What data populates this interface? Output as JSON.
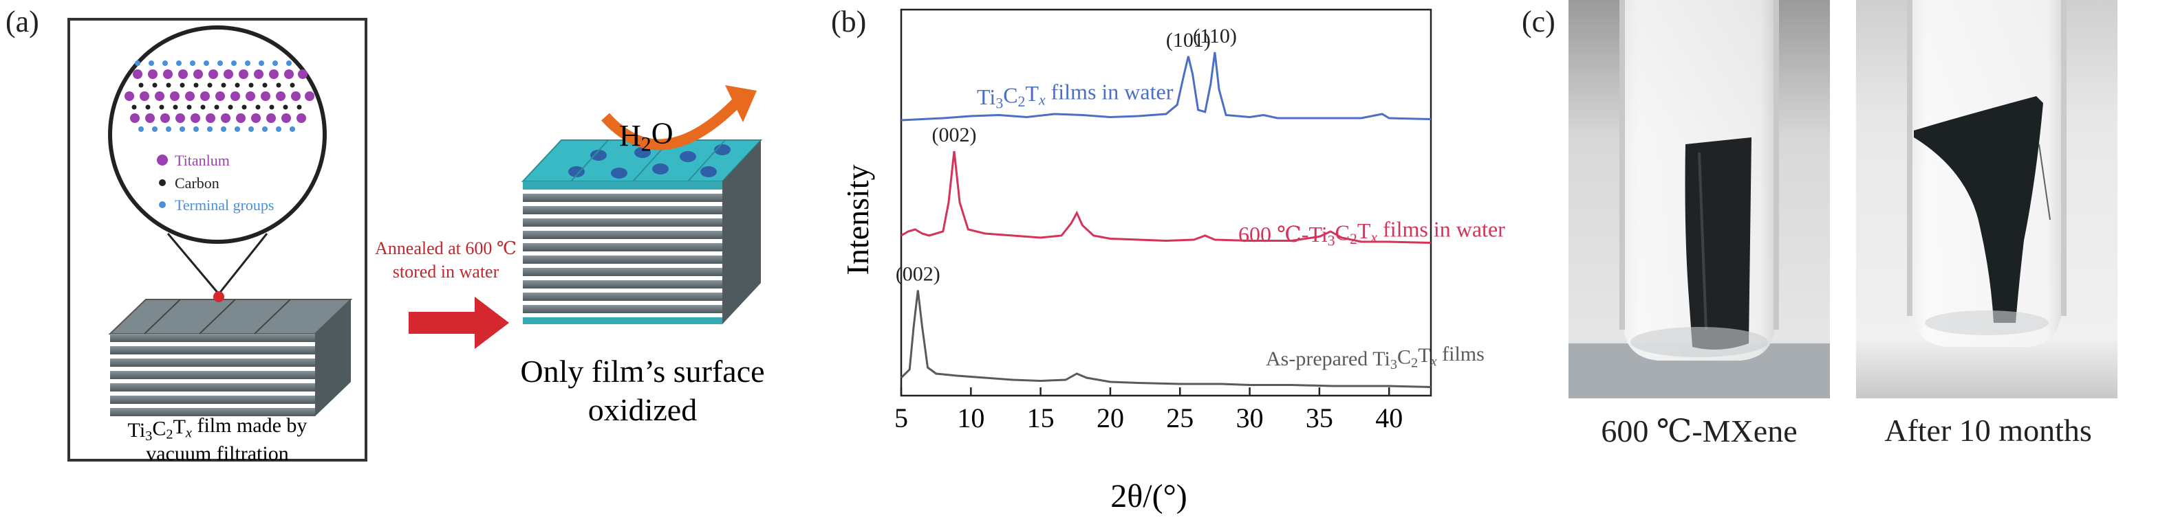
{
  "panel_a": {
    "letter": "(a)",
    "legend_titanium": "Titanlum",
    "legend_carbon": "Carbon",
    "legend_terminal": "Terminal groups",
    "film_caption_line1": "Ti3C2Tx film made by",
    "film_caption_line2": "vacuum filtration",
    "arrow_label_line1": "Annealed at 600 ℃",
    "arrow_label_line2": "stored in water",
    "water_label": "H2O",
    "oxidized_line1": "Only film’s surface",
    "oxidized_line2": "oxidized",
    "colors": {
      "titanium": "#9b3fb0",
      "carbon": "#222222",
      "terminal": "#4a90d6",
      "arrow": "#d4272e",
      "curved_arrow": "#e86a1f",
      "surface": "#39b9c4"
    }
  },
  "panel_b": {
    "letter": "(b)"
  },
  "panel_c": {
    "letter": "(c)",
    "photo1_caption": "600 ℃-MXene",
    "photo2_caption": "After 10 months"
  },
  "chart_data": {
    "type": "line",
    "xlabel": "2θ/(°)",
    "ylabel": "Intensity",
    "xlim": [
      5,
      43
    ],
    "xticks": [
      5,
      10,
      15,
      20,
      25,
      30,
      35,
      40
    ],
    "yticks": "none",
    "grid": false,
    "series": [
      {
        "name": "Ti3C2Tx films in water",
        "color": "#4a6fc4",
        "offset": 2.6,
        "points": [
          [
            5,
            0.0
          ],
          [
            8,
            0.02
          ],
          [
            10,
            0.04
          ],
          [
            12,
            0.05
          ],
          [
            14,
            0.03
          ],
          [
            16,
            0.06
          ],
          [
            18,
            0.05
          ],
          [
            20,
            0.03
          ],
          [
            22,
            0.04
          ],
          [
            24,
            0.06
          ],
          [
            24.8,
            0.15
          ],
          [
            25.3,
            0.45
          ],
          [
            25.6,
            0.62
          ],
          [
            25.9,
            0.45
          ],
          [
            26.3,
            0.1
          ],
          [
            26.8,
            0.08
          ],
          [
            27.2,
            0.35
          ],
          [
            27.5,
            0.66
          ],
          [
            27.8,
            0.3
          ],
          [
            28.3,
            0.05
          ],
          [
            30,
            0.03
          ],
          [
            31,
            0.05
          ],
          [
            32,
            0.02
          ],
          [
            35,
            0.02
          ],
          [
            38,
            0.02
          ],
          [
            39.5,
            0.06
          ],
          [
            40,
            0.02
          ],
          [
            43,
            0.01
          ]
        ],
        "annotations": [
          {
            "x": 25.6,
            "text": "(101)"
          },
          {
            "x": 27.5,
            "text": "(110)"
          }
        ]
      },
      {
        "name": "600 ℃-Ti3C2Tx films in water",
        "color": "#d6335a",
        "offset": 1.4,
        "points": [
          [
            5,
            0.08
          ],
          [
            5.5,
            0.12
          ],
          [
            6,
            0.14
          ],
          [
            6.5,
            0.1
          ],
          [
            7,
            0.08
          ],
          [
            8,
            0.12
          ],
          [
            8.4,
            0.4
          ],
          [
            8.8,
            0.9
          ],
          [
            9.2,
            0.4
          ],
          [
            9.8,
            0.14
          ],
          [
            11,
            0.1
          ],
          [
            13,
            0.08
          ],
          [
            15,
            0.06
          ],
          [
            16.5,
            0.08
          ],
          [
            17.2,
            0.2
          ],
          [
            17.6,
            0.3
          ],
          [
            18,
            0.18
          ],
          [
            18.8,
            0.08
          ],
          [
            20,
            0.05
          ],
          [
            22,
            0.04
          ],
          [
            24,
            0.03
          ],
          [
            26,
            0.04
          ],
          [
            26.8,
            0.08
          ],
          [
            27.5,
            0.04
          ],
          [
            30,
            0.03
          ],
          [
            33,
            0.03
          ],
          [
            35,
            0.07
          ],
          [
            35.8,
            0.12
          ],
          [
            36.6,
            0.06
          ],
          [
            38,
            0.02
          ],
          [
            40,
            0.02
          ],
          [
            43,
            0.01
          ]
        ],
        "annotations": [
          {
            "x": 8.8,
            "text": "(002)"
          }
        ]
      },
      {
        "name": "As-prepared Ti3C2Tx films",
        "color": "#5a5a5a",
        "offset": 0.0,
        "points": [
          [
            5,
            0.1
          ],
          [
            5.6,
            0.18
          ],
          [
            5.9,
            0.6
          ],
          [
            6.2,
            0.95
          ],
          [
            6.5,
            0.6
          ],
          [
            6.9,
            0.2
          ],
          [
            7.5,
            0.14
          ],
          [
            9,
            0.12
          ],
          [
            11,
            0.1
          ],
          [
            13,
            0.08
          ],
          [
            15,
            0.07
          ],
          [
            16.8,
            0.08
          ],
          [
            17.6,
            0.14
          ],
          [
            18.3,
            0.1
          ],
          [
            20,
            0.06
          ],
          [
            22,
            0.05
          ],
          [
            25,
            0.04
          ],
          [
            28,
            0.04
          ],
          [
            30,
            0.03
          ],
          [
            33,
            0.03
          ],
          [
            36,
            0.02
          ],
          [
            40,
            0.02
          ],
          [
            43,
            0.01
          ]
        ],
        "annotations": [
          {
            "x": 6.2,
            "text": "(002)"
          }
        ]
      }
    ]
  }
}
